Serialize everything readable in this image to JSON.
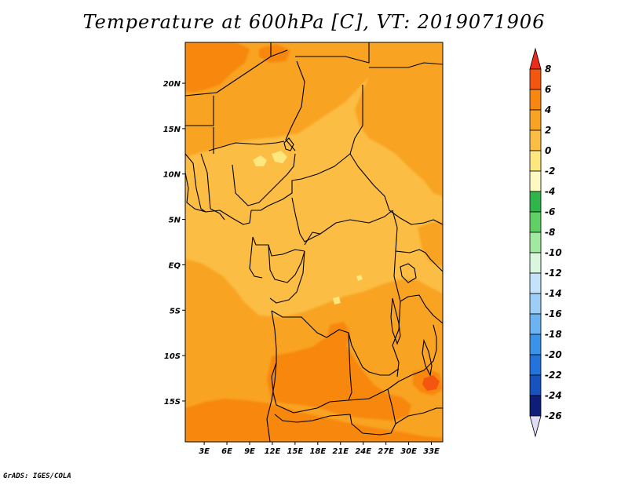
{
  "title": "Temperature at 600hPa [C], VT: 2019071906",
  "credit": "GrADS: IGES/COLA",
  "map": {
    "projection": "lat-lon",
    "lon_range": [
      0.5,
      34.5
    ],
    "lat_range": [
      -19.5,
      24.5
    ],
    "x_ticks": [
      {
        "value": 3,
        "label": "3E"
      },
      {
        "value": 6,
        "label": "6E"
      },
      {
        "value": 9,
        "label": "9E"
      },
      {
        "value": 12,
        "label": "12E"
      },
      {
        "value": 15,
        "label": "15E"
      },
      {
        "value": 18,
        "label": "18E"
      },
      {
        "value": 21,
        "label": "21E"
      },
      {
        "value": 24,
        "label": "24E"
      },
      {
        "value": 27,
        "label": "27E"
      },
      {
        "value": 30,
        "label": "30E"
      },
      {
        "value": 33,
        "label": "33E"
      }
    ],
    "y_ticks": [
      {
        "value": 20,
        "label": "20N"
      },
      {
        "value": 15,
        "label": "15N"
      },
      {
        "value": 10,
        "label": "10N"
      },
      {
        "value": 5,
        "label": "5N"
      },
      {
        "value": 0,
        "label": "EQ"
      },
      {
        "value": -5,
        "label": "5S"
      },
      {
        "value": -10,
        "label": "10S"
      },
      {
        "value": -15,
        "label": "15S"
      }
    ]
  },
  "colorbar": {
    "labels": [
      "8",
      "6",
      "4",
      "2",
      "0",
      "-2",
      "-4",
      "-6",
      "-8",
      "-10",
      "-12",
      "-14",
      "-16",
      "-18",
      "-20",
      "-22",
      "-24",
      "-26"
    ],
    "colors": [
      "#ea2c1a",
      "#f5560f",
      "#f78711",
      "#f9a324",
      "#fbbd43",
      "#fde77f",
      "#fef9c0",
      "#2fb54a",
      "#5fd066",
      "#a1e8a0",
      "#dbf6df",
      "#c4e3fb",
      "#9ccef8",
      "#6cb3f1",
      "#3a93e8",
      "#2273db",
      "#1852bf",
      "#0e1e78",
      "#e0dcf5"
    ],
    "color_roles": {
      "over_max": "#ea2c1a",
      "under_min": "#e0dcf5"
    }
  },
  "field": {
    "dominant_range": "0 to 2",
    "regions": [
      {
        "name": "northwest-warm-patch",
        "range": "4 to 6"
      },
      {
        "name": "southwest-warm-band",
        "range": "4 to 6"
      },
      {
        "name": "angola-warm-core",
        "range": "4 to 6"
      },
      {
        "name": "central-cool-spots",
        "range": "-2 to 0"
      }
    ]
  }
}
